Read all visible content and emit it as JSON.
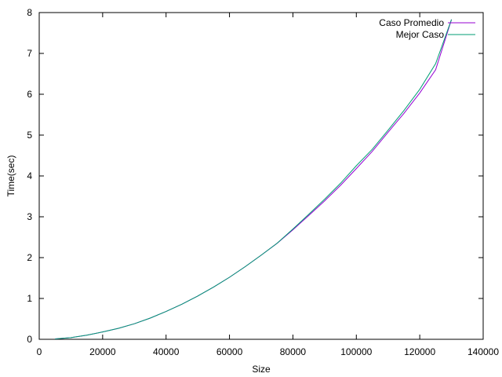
{
  "chart_data": {
    "type": "line",
    "title": "",
    "xlabel": "Size",
    "ylabel": "Time(sec)",
    "xlim": [
      0,
      140000
    ],
    "ylim": [
      0,
      8
    ],
    "x_ticks": [
      "0",
      "20000",
      "40000",
      "60000",
      "80000",
      "100000",
      "120000",
      "140000"
    ],
    "y_ticks": [
      "0",
      "1",
      "2",
      "3",
      "4",
      "5",
      "6",
      "7",
      "8"
    ],
    "grid": false,
    "legend_position": "top-right",
    "series": [
      {
        "name": "Caso Promedio",
        "color": "#9400d3",
        "x": [
          5000,
          10000,
          15000,
          20000,
          25000,
          30000,
          35000,
          40000,
          45000,
          50000,
          55000,
          60000,
          65000,
          70000,
          75000,
          80000,
          85000,
          90000,
          95000,
          100000,
          105000,
          110000,
          115000,
          120000,
          125000,
          130000
        ],
        "y": [
          0.01,
          0.04,
          0.1,
          0.18,
          0.27,
          0.38,
          0.52,
          0.68,
          0.86,
          1.06,
          1.28,
          1.52,
          1.78,
          2.06,
          2.35,
          2.68,
          3.03,
          3.39,
          3.77,
          4.18,
          4.6,
          5.07,
          5.53,
          6.03,
          6.6,
          7.83
        ]
      },
      {
        "name": "Mejor Caso",
        "color": "#009e73",
        "x": [
          5000,
          10000,
          15000,
          20000,
          25000,
          30000,
          35000,
          40000,
          45000,
          50000,
          55000,
          60000,
          65000,
          70000,
          75000,
          80000,
          85000,
          90000,
          95000,
          100000,
          105000,
          110000,
          115000,
          120000,
          125000,
          130000
        ],
        "y": [
          0.01,
          0.04,
          0.1,
          0.18,
          0.27,
          0.38,
          0.52,
          0.68,
          0.86,
          1.06,
          1.28,
          1.52,
          1.78,
          2.06,
          2.35,
          2.7,
          3.06,
          3.43,
          3.82,
          4.25,
          4.65,
          5.12,
          5.6,
          6.12,
          6.75,
          7.83
        ]
      }
    ]
  }
}
